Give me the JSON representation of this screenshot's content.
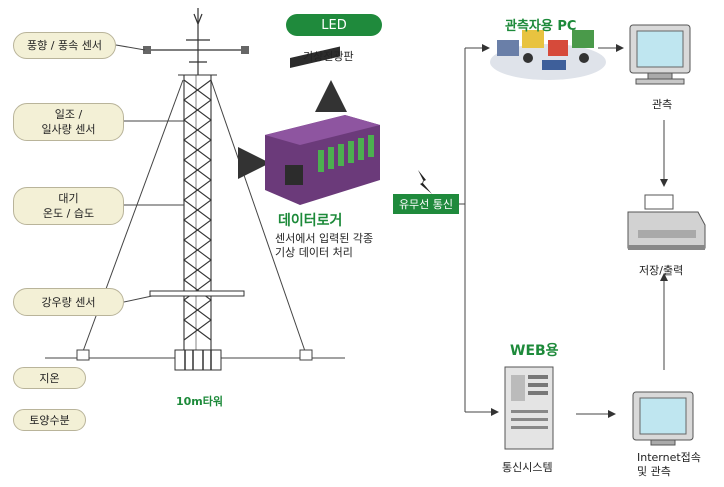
{
  "sensors": [
    {
      "label": "풍향 / 풍속 센서"
    },
    {
      "label_line1": "일조 /",
      "label_line2": "일사량 센서"
    },
    {
      "label_line1": "대기",
      "label_line2": "온도 / 습도"
    },
    {
      "label": "강우량 센서"
    },
    {
      "label": "지온"
    },
    {
      "label": "토양수분"
    }
  ],
  "tower": {
    "label": "10m타워"
  },
  "led": {
    "badge": "LED",
    "caption": "기상전광판"
  },
  "logger": {
    "title": "데이터로거",
    "desc_line1": "센서에서 입력된 각종",
    "desc_line2": "기상 데이터 처리"
  },
  "comm": {
    "badge": "유무선 통신"
  },
  "pc": {
    "title": "관측자용 PC"
  },
  "monitor_top": {
    "caption": "관측"
  },
  "printer": {
    "caption": "저장/출력"
  },
  "web": {
    "title": "WEB용",
    "caption": "통신시스템"
  },
  "monitor_bottom": {
    "caption_line1": "Internet접속",
    "caption_line2": "및 관측"
  }
}
